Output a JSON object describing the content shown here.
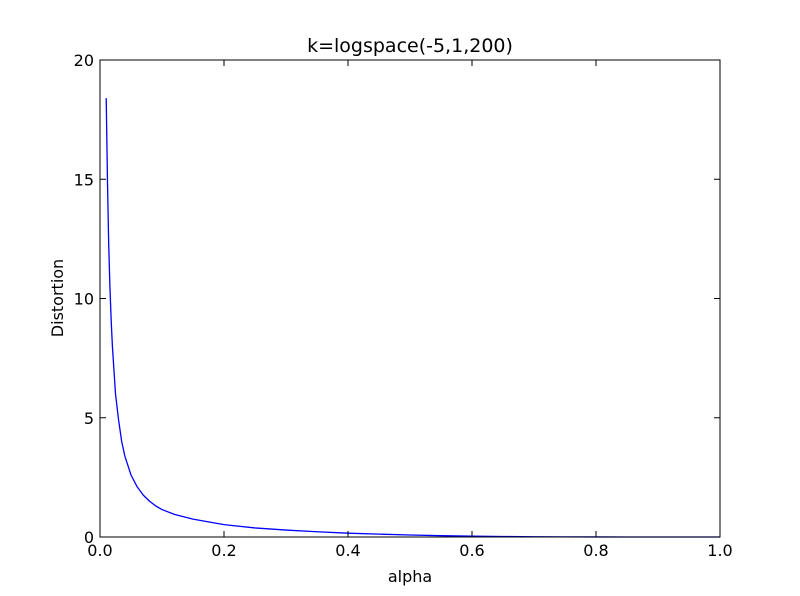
{
  "chart_data": {
    "type": "line",
    "title": "k=logspace(-5,1,200)",
    "xlabel": "alpha",
    "ylabel": "Distortion",
    "xlim": [
      0.0,
      1.0
    ],
    "ylim": [
      0,
      20
    ],
    "x_ticks": [
      "0.0",
      "0.2",
      "0.4",
      "0.6",
      "0.8",
      "1.0"
    ],
    "y_ticks": [
      "0",
      "5",
      "10",
      "15",
      "20"
    ],
    "grid": false,
    "series": [
      {
        "color": "#0000ff",
        "x": [
          0.01,
          0.012,
          0.014,
          0.016,
          0.018,
          0.02,
          0.025,
          0.03,
          0.035,
          0.04,
          0.05,
          0.06,
          0.07,
          0.08,
          0.09,
          0.1,
          0.12,
          0.15,
          0.2,
          0.25,
          0.3,
          0.35,
          0.4,
          0.45,
          0.5,
          0.55,
          0.6,
          0.65,
          0.7,
          0.75,
          0.8,
          0.85,
          0.9,
          0.95,
          1.0
        ],
        "y": [
          18.4,
          15.0,
          12.3,
          10.5,
          9.1,
          8.0,
          6.0,
          4.9,
          4.0,
          3.4,
          2.6,
          2.1,
          1.75,
          1.5,
          1.3,
          1.15,
          0.95,
          0.75,
          0.52,
          0.38,
          0.29,
          0.22,
          0.16,
          0.12,
          0.085,
          0.055,
          0.035,
          0.02,
          0.01,
          0.005,
          0.002,
          0.001,
          0.0,
          0.0,
          0.0
        ]
      }
    ]
  }
}
